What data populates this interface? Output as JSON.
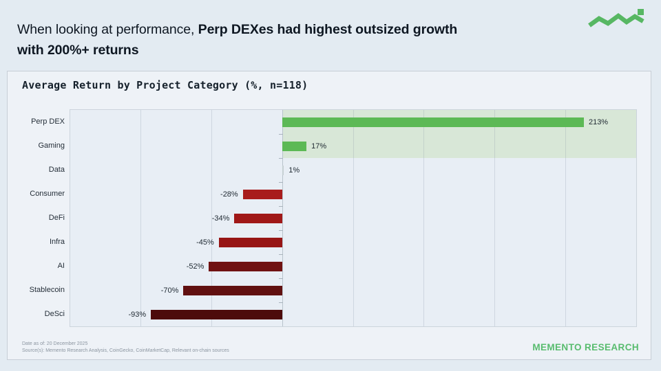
{
  "header": {
    "title_prefix": "When looking at performance, ",
    "title_bold_line1": "Perp DEXes had highest outsized growth",
    "title_bold_line2": "with 200%+ returns"
  },
  "logo": {
    "color": "#57b763"
  },
  "chart_data": {
    "type": "bar",
    "orientation": "horizontal",
    "title": "Average Return by Project Category (%, n=118)",
    "categories": [
      "Perp DEX",
      "Gaming",
      "Data",
      "Consumer",
      "DeFi",
      "Infra",
      "AI",
      "Stablecoin",
      "DeSci"
    ],
    "values": [
      213,
      17,
      1,
      -28,
      -34,
      -45,
      -52,
      -70,
      -93
    ],
    "value_labels": [
      "213%",
      "17%",
      "1%",
      "-28%",
      "-34%",
      "-45%",
      "-52%",
      "-70%",
      "-93%"
    ],
    "bar_colors": [
      "#5cb955",
      "#5cb955",
      "#c7d1d4",
      "#a81c1c",
      "#a01818",
      "#971515",
      "#701212",
      "#611010",
      "#4d0b0b"
    ],
    "xlim": [
      -150,
      250
    ],
    "gridline_step": 50,
    "grid": true,
    "legend_position": "none",
    "highlight_band": {
      "row_start": 0,
      "row_count": 2,
      "from_value": 0,
      "to_value": 250,
      "color": "#d8e7d7"
    }
  },
  "footer": {
    "date_line": "Date as of: 20 December 2025",
    "source_line": "Source(s): Memento Research Analysis, CoinGecko, CoinMarketCap, Relevant on-chain sources",
    "brand": "MEMENTO RESEARCH"
  },
  "colors": {
    "page_bg": "#e3ebf2",
    "card_bg": "#eef2f7",
    "plot_bg": "#e8eef5",
    "positive_bar": "#5cb955",
    "brand_green": "#58bc6e",
    "title_text": "#0e1722"
  }
}
